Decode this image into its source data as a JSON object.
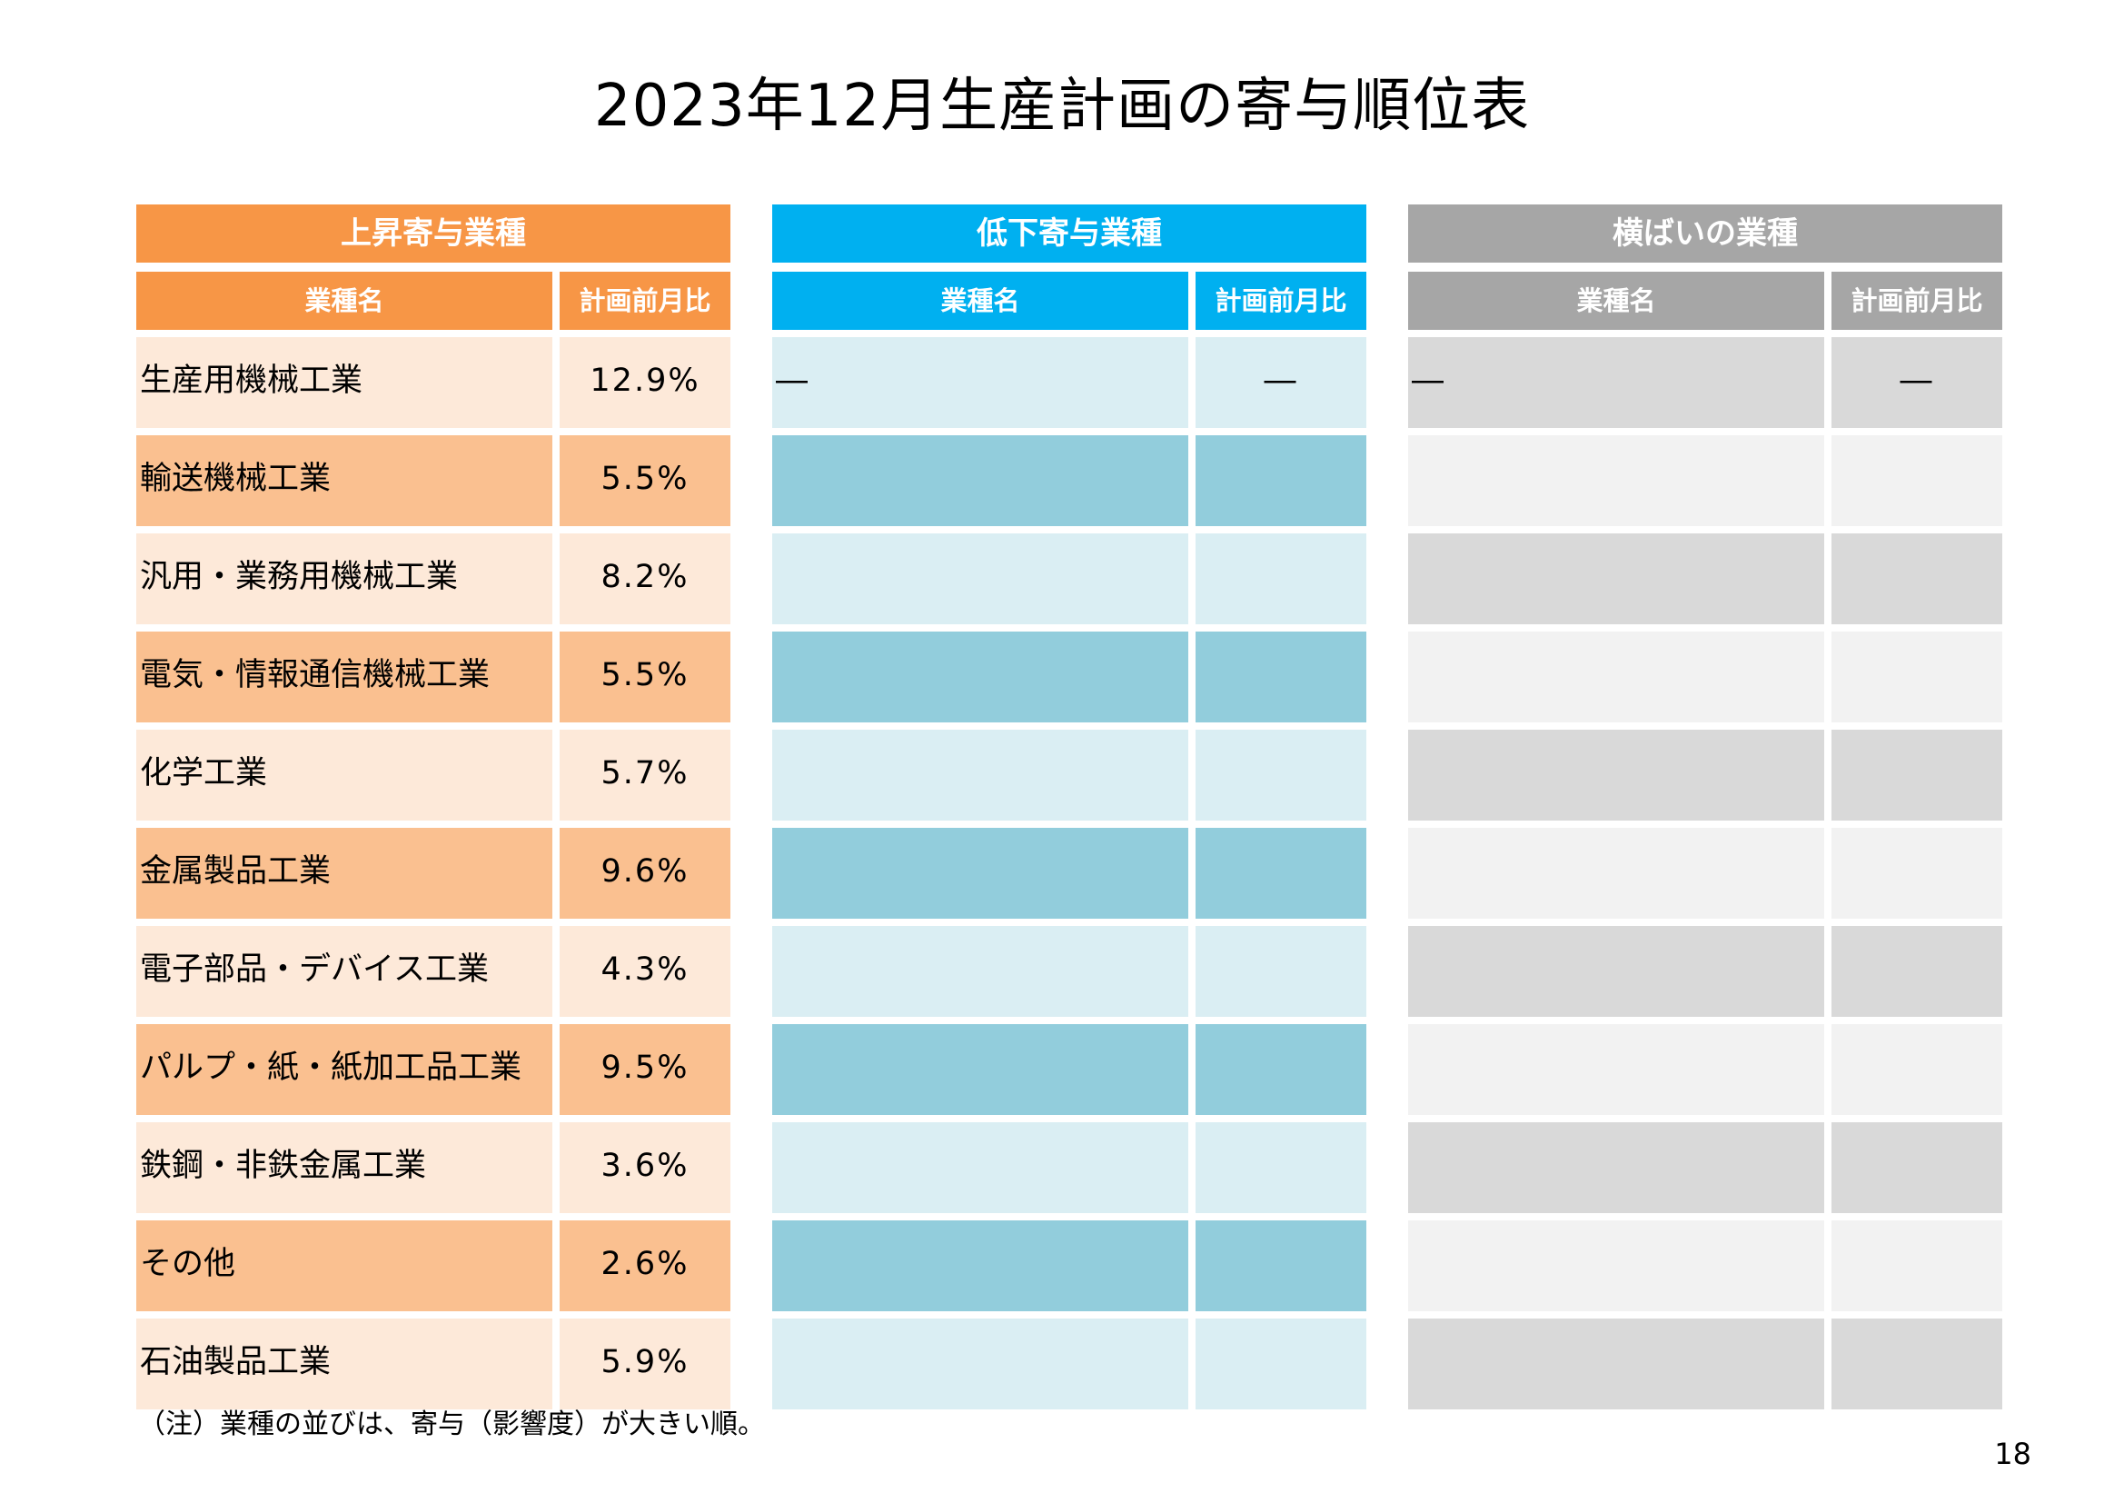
{
  "title": "2023年12月生産計画の寄与順位表",
  "colors": {
    "rise_header": "#f79646",
    "rise_row_light": "#fde9d9",
    "rise_row_dark": "#fac090",
    "fall_header": "#00b0f0",
    "fall_row_light": "#daeef3",
    "fall_row_dark": "#92cddc",
    "flat_header": "#a6a6a6",
    "flat_row_dark": "#d9d9d9",
    "flat_row_light": "#f2f2f2"
  },
  "tables": {
    "rise": {
      "header": "上昇寄与業種",
      "col_name": "業種名",
      "col_value": "計画前月比",
      "rows": [
        {
          "name": "生産用機械工業",
          "value": "12.9%"
        },
        {
          "name": "輸送機械工業",
          "value": "5.5%"
        },
        {
          "name": "汎用・業務用機械工業",
          "value": "8.2%"
        },
        {
          "name": "電気・情報通信機械工業",
          "value": "5.5%"
        },
        {
          "name": "化学工業",
          "value": "5.7%"
        },
        {
          "name": "金属製品工業",
          "value": "9.6%"
        },
        {
          "name": "電子部品・デバイス工業",
          "value": "4.3%"
        },
        {
          "name": "パルプ・紙・紙加工品工業",
          "value": "9.5%"
        },
        {
          "name": "鉄鋼・非鉄金属工業",
          "value": "3.6%"
        },
        {
          "name": "その他",
          "value": "2.6%"
        },
        {
          "name": "石油製品工業",
          "value": "5.9%"
        }
      ]
    },
    "fall": {
      "header": "低下寄与業種",
      "col_name": "業種名",
      "col_value": "計画前月比",
      "rows": [
        {
          "name": "―",
          "value": "―"
        },
        {
          "name": "",
          "value": ""
        },
        {
          "name": "",
          "value": ""
        },
        {
          "name": "",
          "value": ""
        },
        {
          "name": "",
          "value": ""
        },
        {
          "name": "",
          "value": ""
        },
        {
          "name": "",
          "value": ""
        },
        {
          "name": "",
          "value": ""
        },
        {
          "name": "",
          "value": ""
        },
        {
          "name": "",
          "value": ""
        },
        {
          "name": "",
          "value": ""
        }
      ]
    },
    "flat": {
      "header": "横ばいの業種",
      "col_name": "業種名",
      "col_value": "計画前月比",
      "rows": [
        {
          "name": "―",
          "value": "―"
        },
        {
          "name": "",
          "value": ""
        },
        {
          "name": "",
          "value": ""
        },
        {
          "name": "",
          "value": ""
        },
        {
          "name": "",
          "value": ""
        },
        {
          "name": "",
          "value": ""
        },
        {
          "name": "",
          "value": ""
        },
        {
          "name": "",
          "value": ""
        },
        {
          "name": "",
          "value": ""
        },
        {
          "name": "",
          "value": ""
        },
        {
          "name": "",
          "value": ""
        }
      ]
    }
  },
  "note": "（注）業種の並びは、寄与（影響度）が大きい順。",
  "page_number": "18"
}
